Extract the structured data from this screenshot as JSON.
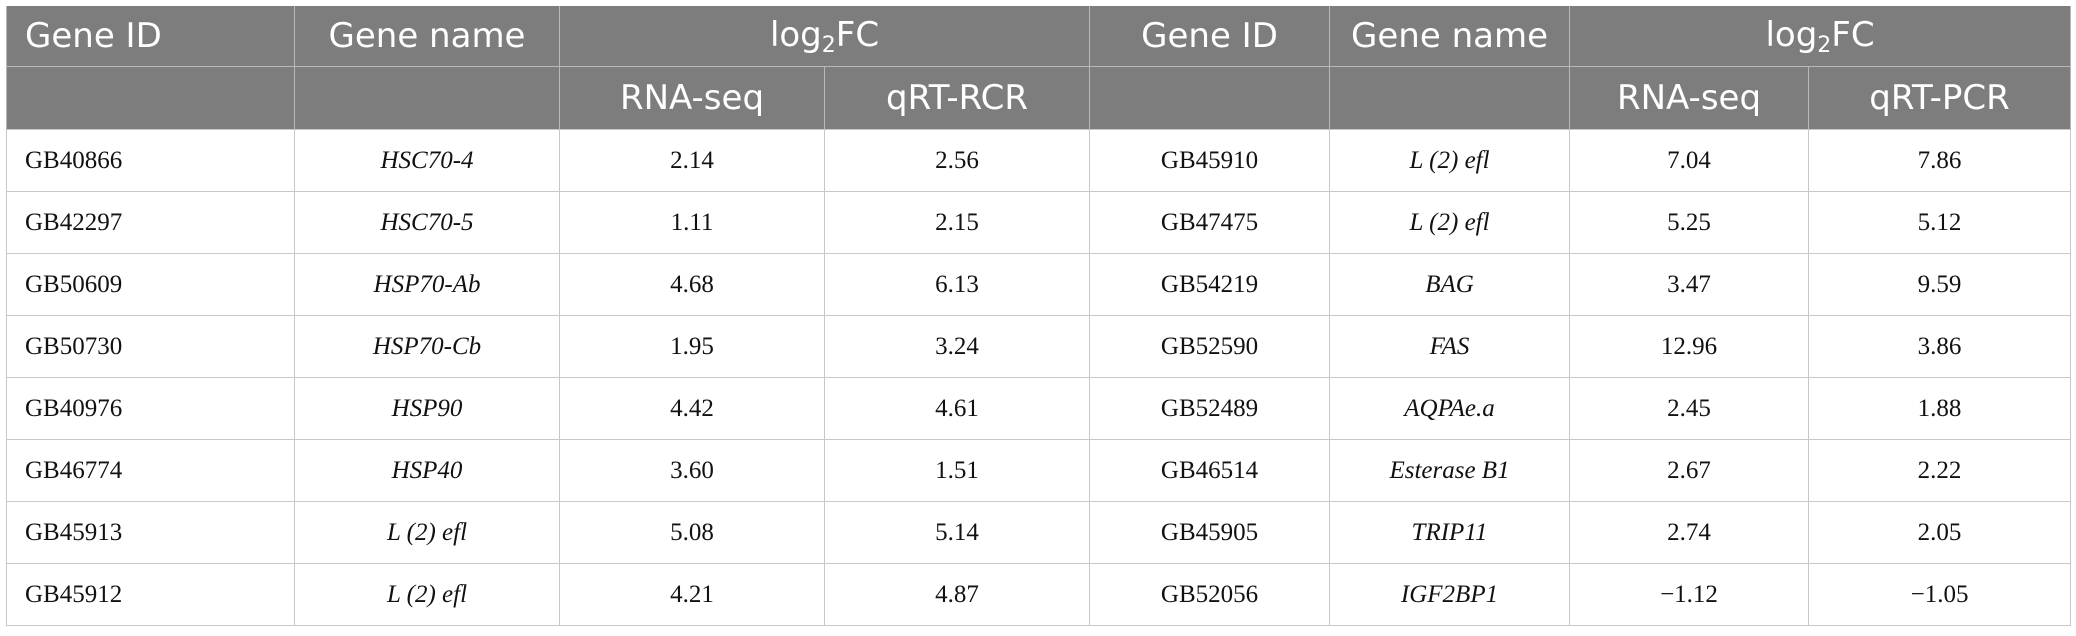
{
  "header": {
    "left_gene_id": "Gene ID",
    "left_gene_name": "Gene name",
    "left_log_prefix": "log",
    "left_log_sub": "2",
    "left_log_suffix": "FC",
    "left_rna_seq": "RNA-seq",
    "left_qrt": "qRT-RCR",
    "right_gene_id": "Gene ID",
    "right_gene_name": "Gene name",
    "right_log_prefix": "log",
    "right_log_sub": "2",
    "right_log_suffix": "FC",
    "right_rna_seq": "RNA-seq",
    "right_qrt": "qRT-PCR"
  },
  "rows": [
    {
      "id1": "GB40866",
      "name1": "HSC70-4",
      "rna1": "2.14",
      "qrt1": "2.56",
      "id2": "GB45910",
      "name2": "L (2) efl",
      "rna2": "7.04",
      "qrt2": "7.86"
    },
    {
      "id1": "GB42297",
      "name1": "HSC70-5",
      "rna1": "1.11",
      "qrt1": "2.15",
      "id2": "GB47475",
      "name2": "L (2) efl",
      "rna2": "5.25",
      "qrt2": "5.12"
    },
    {
      "id1": "GB50609",
      "name1": "HSP70-Ab",
      "rna1": "4.68",
      "qrt1": "6.13",
      "id2": "GB54219",
      "name2": "BAG",
      "rna2": "3.47",
      "qrt2": "9.59"
    },
    {
      "id1": "GB50730",
      "name1": "HSP70-Cb",
      "rna1": "1.95",
      "qrt1": "3.24",
      "id2": "GB52590",
      "name2": "FAS",
      "rna2": "12.96",
      "qrt2": "3.86"
    },
    {
      "id1": "GB40976",
      "name1": "HSP90",
      "rna1": "4.42",
      "qrt1": "4.61",
      "id2": "GB52489",
      "name2": "AQPAe.a",
      "rna2": "2.45",
      "qrt2": "1.88"
    },
    {
      "id1": "GB46774",
      "name1": "HSP40",
      "rna1": "3.60",
      "qrt1": "1.51",
      "id2": "GB46514",
      "name2": "Esterase B1",
      "rna2": "2.67",
      "qrt2": "2.22"
    },
    {
      "id1": "GB45913",
      "name1": "L (2) efl",
      "rna1": "5.08",
      "qrt1": "5.14",
      "id2": "GB45905",
      "name2": "TRIP11",
      "rna2": "2.74",
      "qrt2": "2.05"
    },
    {
      "id1": "GB45912",
      "name1": "L (2) efl",
      "rna1": "4.21",
      "qrt1": "4.87",
      "id2": "GB52056",
      "name2": "IGF2BP1",
      "rna2": "−1.12",
      "qrt2": "−1.05"
    }
  ]
}
